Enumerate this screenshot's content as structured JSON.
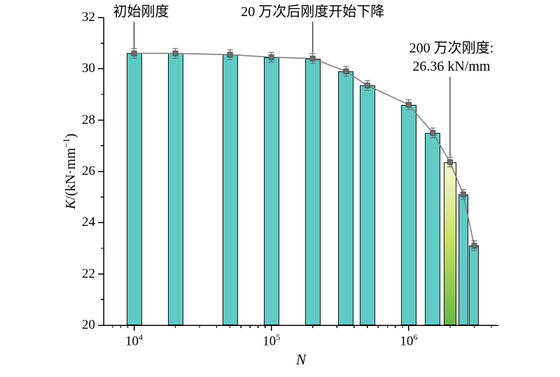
{
  "page": {
    "background": "#ffffff"
  },
  "axis": {
    "x_label": "N",
    "y_label_k": "K",
    "y_label_rest": "/(kN·mm",
    "y_label_sup": "−1",
    "y_label_close": ")"
  },
  "chart_data": {
    "type": "bar",
    "x": [
      10000,
      20000,
      50000,
      100000,
      200000,
      350000,
      500000,
      1000000,
      1500000,
      2000000,
      2500000,
      3000000
    ],
    "values": [
      30.6,
      30.6,
      30.55,
      30.45,
      30.4,
      29.9,
      29.35,
      28.6,
      27.5,
      26.36,
      25.1,
      23.1
    ],
    "xlabel": "N",
    "ylabel": "K/(kN·mm⁻¹)",
    "xscale": "log",
    "xlim": [
      6000,
      4500000
    ],
    "ylim": [
      20,
      32
    ],
    "xticks": [
      10000,
      100000,
      1000000
    ],
    "yticks": [
      20,
      22,
      24,
      26,
      28,
      30,
      32
    ],
    "grid": false,
    "legend": "none",
    "bar_color": "#5ECBC6",
    "bar_edge_color": "#111111",
    "highlight_index": 9,
    "highlight_gradient": [
      "#f6f8d8",
      "#cde265",
      "#64b93e"
    ],
    "line_color": "#7f7f7f",
    "marker_color": "#6f6f6f",
    "annotations": [
      {
        "text": "初始刚度",
        "target_index": 0
      },
      {
        "text": "20 万次后刚度开始下降",
        "target_index": 4
      },
      {
        "text": "200 万次刚度:\n26.36 kN/mm",
        "target_index": 9
      }
    ]
  }
}
